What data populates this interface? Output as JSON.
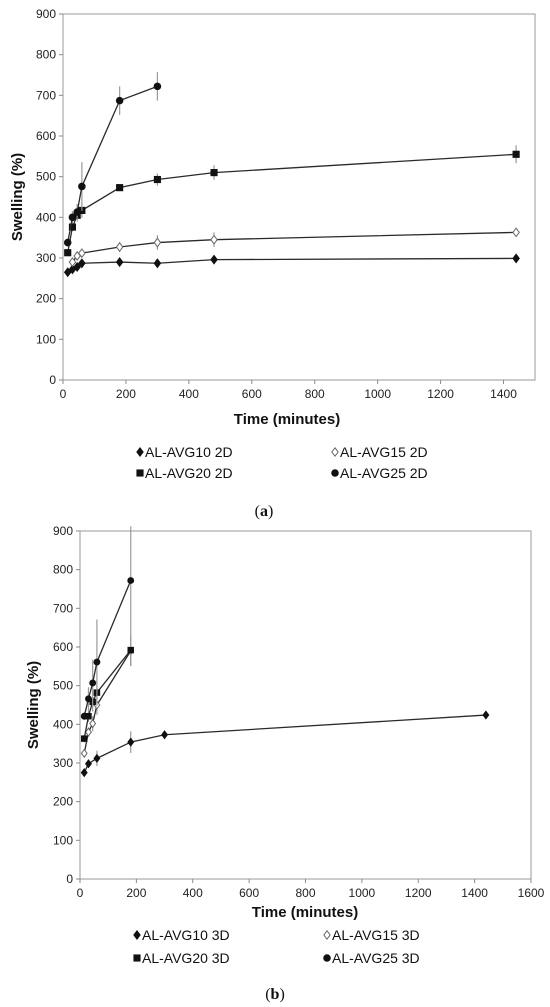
{
  "chart_data": [
    {
      "type": "line",
      "panel_label": "a",
      "xlabel": "Time (minutes)",
      "ylabel": "Swelling (%)",
      "xlim": [
        0,
        1500
      ],
      "ylim": [
        0,
        900
      ],
      "xticks": [
        0,
        200,
        400,
        600,
        800,
        1000,
        1200,
        1400
      ],
      "yticks": [
        0,
        100,
        200,
        300,
        400,
        500,
        600,
        700,
        800,
        900
      ],
      "grid": false,
      "legend_position": "bottom",
      "series": [
        {
          "name": "AL-AVG10 2D",
          "marker": "diamond-filled",
          "x": [
            15,
            30,
            45,
            60,
            180,
            300,
            480,
            1440
          ],
          "y": [
            265,
            272,
            278,
            287,
            290,
            287,
            296,
            299
          ],
          "err": [
            4,
            4,
            4,
            4,
            6,
            4,
            6,
            4
          ]
        },
        {
          "name": "AL-AVG15 2D",
          "marker": "diamond-open",
          "x": [
            30,
            45,
            60,
            180,
            300,
            480,
            1440
          ],
          "y": [
            290,
            305,
            312,
            327,
            338,
            345,
            363
          ],
          "err": [
            8,
            10,
            10,
            12,
            18,
            18,
            6
          ]
        },
        {
          "name": "AL-AVG20 2D",
          "marker": "square",
          "x": [
            15,
            30,
            45,
            60,
            180,
            300,
            480,
            1440
          ],
          "y": [
            313,
            376,
            405,
            417,
            473,
            493,
            510,
            555
          ],
          "err": [
            8,
            10,
            15,
            18,
            8,
            15,
            18,
            22
          ]
        },
        {
          "name": "AL-AVG25 2D",
          "marker": "circle",
          "x": [
            15,
            30,
            45,
            60,
            180,
            300
          ],
          "y": [
            338,
            400,
            413,
            476,
            687,
            722
          ],
          "err": [
            10,
            15,
            20,
            60,
            35,
            35
          ]
        }
      ]
    },
    {
      "type": "line",
      "panel_label": "b",
      "xlabel": "Time (minutes)",
      "ylabel": "Swelling (%)",
      "xlim": [
        0,
        1600
      ],
      "ylim": [
        0,
        900
      ],
      "xticks": [
        0,
        200,
        400,
        600,
        800,
        1000,
        1200,
        1400,
        1600
      ],
      "yticks": [
        0,
        100,
        200,
        300,
        400,
        500,
        600,
        700,
        800,
        900
      ],
      "grid": false,
      "legend_position": "bottom",
      "series": [
        {
          "name": "AL-AVG10 3D",
          "marker": "diamond-filled",
          "x": [
            15,
            30,
            60,
            180,
            300,
            1440
          ],
          "y": [
            275,
            298,
            312,
            354,
            373,
            424
          ],
          "err": [
            8,
            10,
            20,
            28,
            8,
            6
          ]
        },
        {
          "name": "AL-AVG15 3D",
          "marker": "diamond-open",
          "x": [
            15,
            30,
            45,
            60,
            180
          ],
          "y": [
            325,
            380,
            402,
            450,
            590
          ],
          "err": [
            10,
            12,
            20,
            25,
            40
          ]
        },
        {
          "name": "AL-AVG20 3D",
          "marker": "square",
          "x": [
            15,
            30,
            45,
            60,
            180
          ],
          "y": [
            363,
            421,
            458,
            482,
            592
          ],
          "err": [
            10,
            15,
            25,
            35,
            40
          ]
        },
        {
          "name": "AL-AVG25 3D",
          "marker": "circle",
          "x": [
            15,
            30,
            45,
            60,
            180
          ],
          "y": [
            421,
            466,
            507,
            561,
            772
          ],
          "err": [
            10,
            30,
            60,
            110,
            140
          ]
        }
      ]
    }
  ],
  "colors": {
    "line": "#2a2a2a",
    "errorbar": "#9a9a9a",
    "axis": "#888888",
    "marker": "#111111"
  }
}
